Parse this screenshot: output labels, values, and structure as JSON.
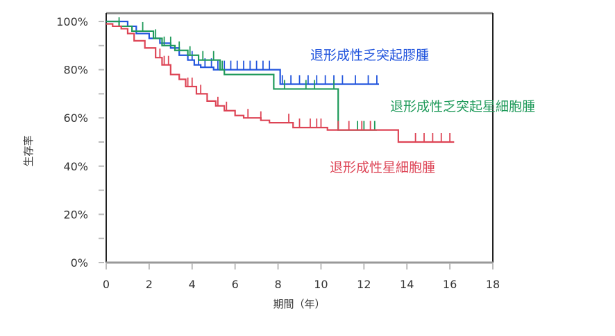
{
  "chart_data": {
    "type": "line",
    "subtype": "kaplan-meier-step",
    "title": "",
    "xlabel": "期間（年）",
    "ylabel": "生存率",
    "xlim": [
      0,
      18
    ],
    "ylim": [
      0,
      100
    ],
    "x_ticks": [
      "0",
      "2",
      "4",
      "6",
      "8",
      "10",
      "12",
      "14",
      "16",
      "18"
    ],
    "y_ticks": [
      "0%",
      "20%",
      "40%",
      "60%",
      "80%",
      "100%"
    ],
    "grid": false,
    "legend_position": "inline labels right of curves",
    "series": [
      {
        "name": "退形成性乏突起膠腫",
        "color": "#2255dd",
        "x": [
          0,
          1.0,
          1.4,
          2.0,
          2.5,
          3.0,
          3.4,
          3.8,
          4.1,
          4.4,
          5.0,
          8.1,
          12.7
        ],
        "values": [
          100,
          98,
          95,
          93,
          91,
          89,
          86,
          84,
          82,
          81,
          80,
          74,
          74
        ]
      },
      {
        "name": "退形成性乏突起星細胞腫",
        "color": "#1f9a5a",
        "x": [
          0,
          0.6,
          1.2,
          2.2,
          2.6,
          3.2,
          3.8,
          4.3,
          5.3,
          5.5,
          7.8,
          10.8,
          12.6
        ],
        "values": [
          100,
          98,
          96,
          93,
          90,
          88,
          86,
          84,
          80,
          78,
          72,
          55,
          55
        ]
      },
      {
        "name": "退形成性星細胞腫",
        "color": "#dd4455",
        "x": [
          0,
          0.3,
          0.7,
          1.0,
          1.3,
          1.8,
          2.3,
          2.6,
          3.0,
          3.4,
          3.7,
          4.2,
          4.7,
          5.1,
          5.5,
          6.0,
          6.4,
          7.2,
          7.6,
          8.7,
          10.3,
          13.6,
          16.2
        ],
        "values": [
          99,
          98,
          97,
          95,
          92,
          89,
          85,
          82,
          78,
          76,
          73,
          70,
          67,
          65,
          63,
          61,
          60,
          59,
          58,
          56,
          55,
          50,
          50
        ]
      }
    ],
    "censor_marks": {
      "退形成性乏突起膠腫": [
        4.0,
        4.3,
        4.6,
        4.9,
        5.2,
        5.5,
        5.8,
        6.1,
        6.4,
        6.7,
        7.0,
        7.3,
        7.6,
        8.2,
        8.6,
        9.0,
        9.4,
        9.8,
        10.2,
        10.6,
        11.0,
        11.6,
        12.2,
        12.6
      ],
      "退形成性乏突起星細胞腫": [
        0.6,
        1.7,
        2.3,
        2.7,
        3.0,
        3.4,
        3.9,
        4.5,
        5.0,
        5.4,
        8.3,
        9.3,
        9.7,
        10.6,
        11.7,
        12.0,
        12.5
      ],
      "退形成性星細胞腫": [
        2.5,
        2.7,
        2.9,
        3.8,
        4.0,
        4.4,
        5.2,
        5.6,
        6.6,
        7.2,
        8.5,
        9.0,
        9.5,
        9.8,
        10.0,
        10.8,
        11.3,
        11.9,
        12.3,
        14.4,
        14.8,
        15.2,
        15.6,
        16.0
      ]
    }
  },
  "labels": {
    "y_axis_title": "生存率",
    "x_axis_title": "期間（年）",
    "legend": [
      {
        "text": "退形成性乏突起膠腫",
        "color": "#2255dd"
      },
      {
        "text": "退形成性乏突起星細胞腫",
        "color": "#1f9a5a"
      },
      {
        "text": "退形成性星細胞腫",
        "color": "#dd4455"
      }
    ]
  }
}
